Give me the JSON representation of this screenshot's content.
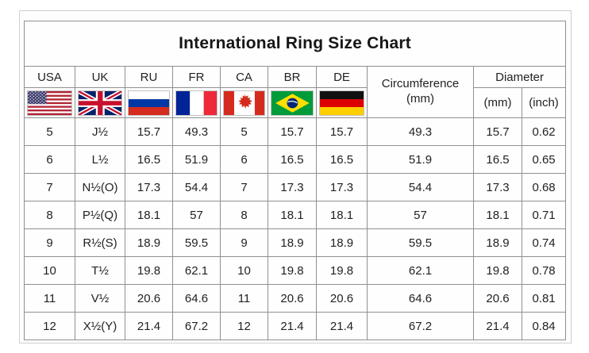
{
  "title": "International Ring Size Chart",
  "header": {
    "countries": [
      "USA",
      "UK",
      "RU",
      "FR",
      "CA",
      "BR",
      "DE"
    ],
    "flags": [
      "usa-flag",
      "uk-flag",
      "ru-flag",
      "fr-flag",
      "ca-flag",
      "br-flag",
      "de-flag"
    ],
    "circumference_label": "Circumference",
    "circumference_unit": "(mm)",
    "diameter_label": "Diameter",
    "diameter_units": [
      "(mm)",
      "(inch)"
    ]
  },
  "chart_data": {
    "type": "table",
    "title": "International Ring Size Chart",
    "columns": [
      "USA",
      "UK",
      "RU",
      "FR",
      "CA",
      "BR",
      "DE",
      "Circumference (mm)",
      "Diameter (mm)",
      "Diameter (inch)"
    ],
    "rows": [
      [
        "5",
        "J½",
        "15.7",
        "49.3",
        "5",
        "15.7",
        "15.7",
        "49.3",
        "15.7",
        "0.62"
      ],
      [
        "6",
        "L½",
        "16.5",
        "51.9",
        "6",
        "16.5",
        "16.5",
        "51.9",
        "16.5",
        "0.65"
      ],
      [
        "7",
        "N½(O)",
        "17.3",
        "54.4",
        "7",
        "17.3",
        "17.3",
        "54.4",
        "17.3",
        "0.68"
      ],
      [
        "8",
        "P½(Q)",
        "18.1",
        "57",
        "8",
        "18.1",
        "18.1",
        "57",
        "18.1",
        "0.71"
      ],
      [
        "9",
        "R½(S)",
        "18.9",
        "59.5",
        "9",
        "18.9",
        "18.9",
        "59.5",
        "18.9",
        "0.74"
      ],
      [
        "10",
        "T½",
        "19.8",
        "62.1",
        "10",
        "19.8",
        "19.8",
        "62.1",
        "19.8",
        "0.78"
      ],
      [
        "11",
        "V½",
        "20.6",
        "64.6",
        "11",
        "20.6",
        "20.6",
        "64.6",
        "20.6",
        "0.81"
      ],
      [
        "12",
        "X½(Y)",
        "21.4",
        "67.2",
        "12",
        "21.4",
        "21.4",
        "67.2",
        "21.4",
        "0.84"
      ]
    ]
  },
  "colors": {
    "table_border": "#909090",
    "outer_frame": "#cfcfcf",
    "text": "#222222",
    "background": "#ffffff"
  }
}
